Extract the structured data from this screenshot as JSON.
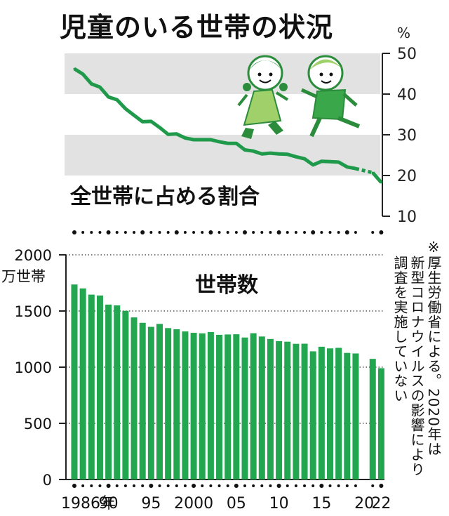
{
  "title": "児童のいる世帯の状況",
  "note": {
    "symbol": "※",
    "lines": [
      "厚生労働省による。2020年は",
      "新型コロナウイルスの影響により",
      "調査を実施していない"
    ]
  },
  "colors": {
    "line": "#1f9a4b",
    "bar": "#22a650",
    "band": "#e2e2e2",
    "axis": "#222222"
  },
  "decoration": {
    "illustration": "two-children-running-icon"
  },
  "chart_data": [
    {
      "type": "line",
      "title": "全世帯に占める割合",
      "ylabel": "%",
      "ylim": [
        10,
        50
      ],
      "yticks": [
        10,
        20,
        30,
        40,
        50
      ],
      "grid": "shaded bands 20-30 and 40-50",
      "x": [
        1986,
        1987,
        1988,
        1989,
        1990,
        1991,
        1992,
        1993,
        1994,
        1995,
        1996,
        1997,
        1998,
        1999,
        2000,
        2001,
        2002,
        2003,
        2004,
        2005,
        2006,
        2007,
        2008,
        2009,
        2010,
        2011,
        2012,
        2013,
        2014,
        2015,
        2016,
        2017,
        2018,
        2019,
        2021,
        2022
      ],
      "values": [
        46.2,
        44.9,
        42.5,
        41.7,
        39.3,
        38.6,
        36.4,
        34.8,
        33.2,
        33.3,
        31.8,
        30.1,
        30.2,
        29.2,
        28.8,
        28.8,
        28.8,
        28.3,
        27.9,
        27.9,
        26.3,
        26.0,
        25.3,
        25.5,
        25.3,
        25.2,
        24.6,
        24.1,
        22.6,
        23.5,
        23.4,
        23.3,
        22.1,
        21.7,
        20.7,
        18.3
      ],
      "gap": [
        2019,
        2021
      ]
    },
    {
      "type": "bar",
      "title": "世帯数",
      "ylabel": "万世帯",
      "ylim": [
        0,
        2000
      ],
      "yticks": [
        0,
        500,
        1000,
        1500,
        2000
      ],
      "grid": "dotted horizontal lines",
      "x": [
        1986,
        1987,
        1988,
        1989,
        1990,
        1991,
        1992,
        1993,
        1994,
        1995,
        1996,
        1997,
        1998,
        1999,
        2000,
        2001,
        2002,
        2003,
        2004,
        2005,
        2006,
        2007,
        2008,
        2009,
        2010,
        2011,
        2012,
        2013,
        2014,
        2015,
        2016,
        2017,
        2018,
        2019,
        2021,
        2022
      ],
      "values": [
        1736,
        1701,
        1646,
        1638,
        1557,
        1550,
        1502,
        1443,
        1395,
        1359,
        1385,
        1348,
        1338,
        1318,
        1306,
        1301,
        1313,
        1288,
        1291,
        1293,
        1264,
        1302,
        1273,
        1251,
        1232,
        1227,
        1208,
        1209,
        1141,
        1182,
        1167,
        1172,
        1127,
        1122,
        1074,
        991
      ],
      "xtick_labels": [
        {
          "year": 1986,
          "label": "1986年"
        },
        {
          "year": 1990,
          "label": "90"
        },
        {
          "year": 1995,
          "label": "95"
        },
        {
          "year": 2000,
          "label": "2000"
        },
        {
          "year": 2005,
          "label": "05"
        },
        {
          "year": 2010,
          "label": "10"
        },
        {
          "year": 2015,
          "label": "15"
        },
        {
          "year": 2020,
          "label": "20"
        },
        {
          "year": 2022,
          "label": "22"
        }
      ]
    }
  ]
}
